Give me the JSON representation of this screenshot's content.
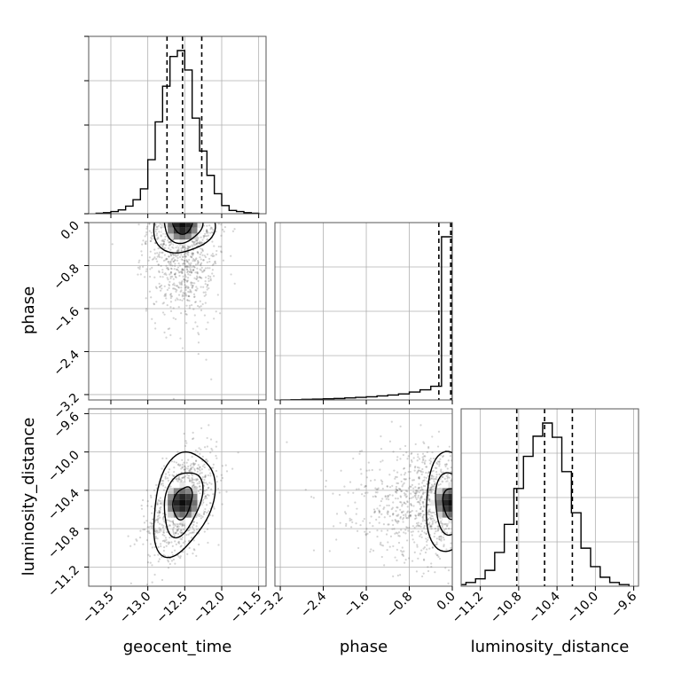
{
  "chart_data": {
    "type": "corner",
    "parameters": [
      "geocent_time",
      "phase",
      "luminosity_distance"
    ],
    "axis_labels": {
      "geocent_time": "geocent_time",
      "phase": "phase",
      "luminosity_distance": "luminosity_distance"
    },
    "ranges": {
      "geocent_time": [
        -13.8,
        -11.4
      ],
      "phase": [
        -3.3,
        0.0
      ],
      "luminosity_distance": [
        -11.4,
        -9.55
      ]
    },
    "ticks": {
      "geocent_time": [
        -13.5,
        -13.0,
        -12.5,
        -12.0,
        -11.5
      ],
      "phase": [
        -3.2,
        -2.4,
        -1.6,
        -0.8,
        0.0
      ],
      "luminosity_distance": [
        -11.2,
        -10.8,
        -10.4,
        -10.0,
        -9.6
      ]
    },
    "tick_labels": {
      "geocent_time": [
        "−13.5",
        "−13.0",
        "−12.5",
        "−12.0",
        "−11.5"
      ],
      "phase": [
        "−3.2",
        "−2.4",
        "−1.6",
        "−0.8",
        "0.0"
      ],
      "luminosity_distance": [
        "−11.2",
        "−10.8",
        "−10.4",
        "−10.0",
        "−9.6"
      ]
    },
    "quantiles": {
      "geocent_time": [
        -12.74,
        -12.53,
        -12.27
      ],
      "phase": [
        -0.25,
        -0.03,
        -0.005
      ],
      "luminosity_distance": [
        -10.82,
        -10.53,
        -10.24
      ]
    },
    "histograms": {
      "geocent_time": {
        "edges": [
          -13.7,
          -13.6,
          -13.5,
          -13.4,
          -13.3,
          -13.2,
          -13.1,
          -13.0,
          -12.9,
          -12.8,
          -12.7,
          -12.6,
          -12.5,
          -12.4,
          -12.3,
          -12.2,
          -12.1,
          -12.0,
          -11.9,
          -11.8,
          -11.7,
          -11.6,
          -11.5
        ],
        "counts": [
          1,
          2,
          4,
          7,
          14,
          26,
          46,
          100,
          170,
          236,
          291,
          302,
          266,
          177,
          116,
          71,
          37,
          15,
          6,
          4,
          2,
          1
        ]
      },
      "phase": {
        "edges": [
          -3.2,
          -3.0,
          -2.8,
          -2.6,
          -2.4,
          -2.2,
          -2.0,
          -1.8,
          -1.6,
          -1.4,
          -1.2,
          -1.0,
          -0.8,
          -0.6,
          -0.4,
          -0.2,
          0.0
        ],
        "counts": [
          0,
          2,
          4,
          6,
          8,
          10,
          14,
          18,
          22,
          28,
          34,
          42,
          55,
          70,
          95,
          1130
        ]
      },
      "luminosity_distance": {
        "edges": [
          -11.45,
          -11.35,
          -11.25,
          -11.15,
          -11.05,
          -10.95,
          -10.85,
          -10.75,
          -10.65,
          -10.55,
          -10.45,
          -10.35,
          -10.25,
          -10.15,
          -10.05,
          -9.95,
          -9.85,
          -9.75,
          -9.65
        ],
        "counts": [
          3,
          7,
          14,
          30,
          64,
          117,
          185,
          246,
          284,
          309,
          282,
          217,
          139,
          72,
          37,
          17,
          7,
          3
        ]
      }
    },
    "contours_2d": {
      "geocent_time__luminosity_distance": {
        "center": [
          -12.52,
          -10.53
        ],
        "levels": [
          {
            "rx": 0.12,
            "ry": 0.18
          },
          {
            "rx": 0.24,
            "ry": 0.36
          },
          {
            "rx": 0.38,
            "ry": 0.56
          }
        ],
        "rotation": -0.55
      }
    },
    "grid": true,
    "legend": "none"
  }
}
